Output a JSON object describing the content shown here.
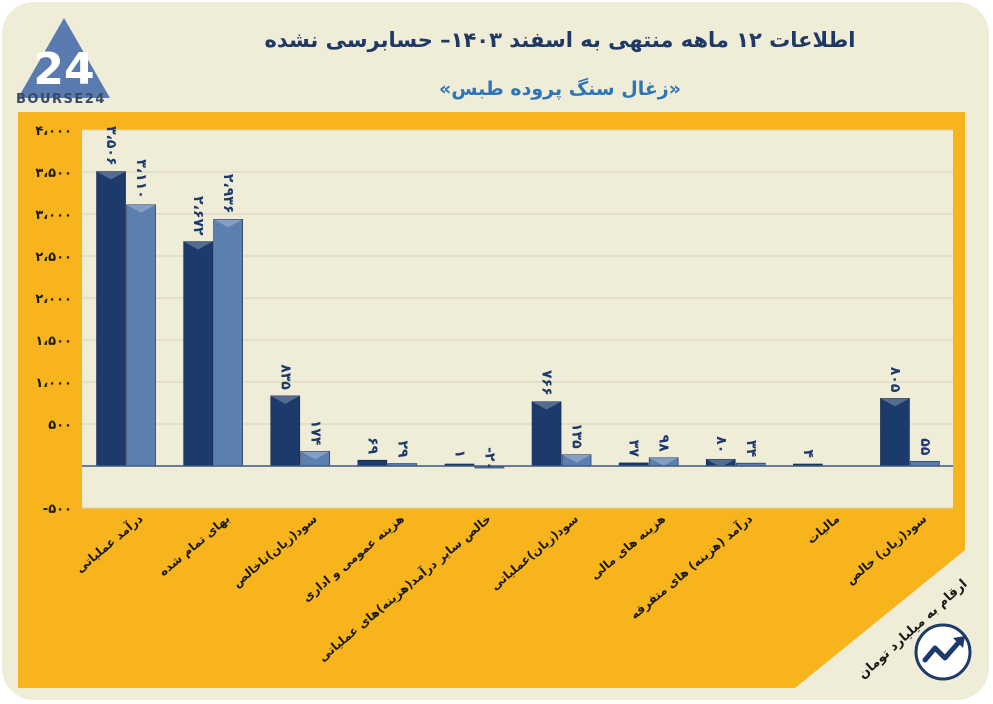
{
  "logo": {
    "text": "BOURSE24",
    "icon": "bourse24-logo"
  },
  "units_note": "ارقام به میلیارد تومان",
  "brand_icon": "trend-arrow-icon",
  "colors": {
    "frame": "#f7b41c",
    "plot_bg": "#efecd8",
    "series1": "#1c3a6b",
    "series2": "#5b7fae",
    "title": "#1f3864",
    "subtitle": "#2e75b6"
  },
  "chart_data": {
    "type": "bar",
    "title": "اطلاعات ۱۲ ماهه منتهی به اسفند ۱۴۰۳– حسابرسی نشده",
    "subtitle": "«زغال سنگ پروده طبس»",
    "categories": [
      "درآمد عملیاتی",
      "بهای تمام شده",
      "سود(زیان)ناخالص",
      "هزینه عمومی و اداری",
      "خالص سایر درآمد(هزینه)های عملیاتی",
      "سود(زیان)عملیاتی",
      "هزینه های مالی",
      "درآمد (هزینه) های متفرقه",
      "مالیات",
      "سود(زیان) خالص"
    ],
    "series": [
      {
        "values": [
          3506,
          2672,
          835,
          69,
          1,
          766,
          37,
          80,
          4,
          805
        ],
        "labels": [
          "۳،۵۰۶",
          "۲،۶۷۲",
          "۸۳۵",
          "۶۹",
          "۱",
          "۷۶۶",
          "۳۷",
          "۸۰",
          "۴",
          "۸۰۵"
        ]
      },
      {
        "values": [
          3110,
          2936,
          174,
          29,
          -20,
          135,
          98,
          34,
          null,
          55
        ],
        "labels": [
          "۳،۱۱۰",
          "۲،۹۳۶",
          "۱۷۴",
          "۲۹",
          "-۲۰",
          "۱۳۵",
          "۹۸",
          "۳۴",
          "",
          "۵۵"
        ]
      }
    ],
    "ylim": [
      -500,
      4000
    ],
    "yticks": [
      -500,
      0,
      500,
      1000,
      1500,
      2000,
      2500,
      3000,
      3500,
      4000
    ],
    "ytick_labels": [
      "-۵۰۰",
      "",
      "۵۰۰",
      "۱،۰۰۰",
      "۱،۵۰۰",
      "۲،۰۰۰",
      "۲،۵۰۰",
      "۳،۰۰۰",
      "۳،۵۰۰",
      "۴،۰۰۰"
    ],
    "grid": true,
    "legend": "none"
  }
}
